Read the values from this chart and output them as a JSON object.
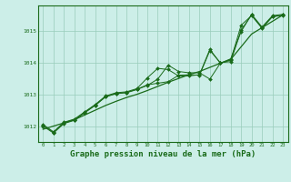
{
  "bg_color": "#cceee8",
  "grid_color": "#99ccbb",
  "line_color": "#1a6b1a",
  "marker_color": "#1a6b1a",
  "xlabel": "Graphe pression niveau de la mer (hPa)",
  "xlabel_fontsize": 6.5,
  "ylim": [
    1011.5,
    1015.8
  ],
  "xlim": [
    -0.5,
    23.5
  ],
  "yticks": [
    1012,
    1013,
    1014,
    1015
  ],
  "xticks": [
    0,
    1,
    2,
    3,
    4,
    5,
    6,
    7,
    8,
    9,
    10,
    11,
    12,
    13,
    14,
    15,
    16,
    17,
    18,
    19,
    20,
    21,
    22,
    23
  ],
  "series": [
    [
      1012.05,
      1011.82,
      1012.12,
      1012.22,
      1012.45,
      1012.68,
      1012.95,
      1013.05,
      1013.08,
      1013.18,
      1013.52,
      1013.82,
      1013.78,
      1013.58,
      1013.58,
      1013.62,
      1014.42,
      1013.98,
      1014.08,
      1015.18,
      1015.48,
      1015.08,
      1015.45,
      1015.48
    ],
    [
      1012.0,
      1011.78,
      1012.08,
      1012.18,
      1012.42,
      1012.65,
      1012.92,
      1013.02,
      1013.05,
      1013.15,
      1013.28,
      1013.48,
      1013.92,
      1013.72,
      1013.68,
      1013.68,
      1013.48,
      1013.98,
      1014.12,
      1014.98,
      1015.52,
      1015.12,
      1015.48,
      1015.52
    ],
    [
      1012.02,
      1011.8,
      1012.1,
      1012.2,
      1012.43,
      1012.66,
      1012.93,
      1013.03,
      1013.06,
      1013.16,
      1013.3,
      1013.35,
      1013.4,
      1013.6,
      1013.62,
      1013.6,
      1014.38,
      1014.0,
      1014.03,
      1015.03,
      1015.5,
      1015.1,
      1015.45,
      1015.5
    ]
  ],
  "trend_line": [
    1011.9,
    1012.0,
    1012.1,
    1012.2,
    1012.35,
    1012.5,
    1012.65,
    1012.78,
    1012.9,
    1013.0,
    1013.12,
    1013.25,
    1013.38,
    1013.5,
    1013.62,
    1013.72,
    1013.85,
    1013.98,
    1014.1,
    1014.5,
    1014.9,
    1015.1,
    1015.3,
    1015.5
  ]
}
